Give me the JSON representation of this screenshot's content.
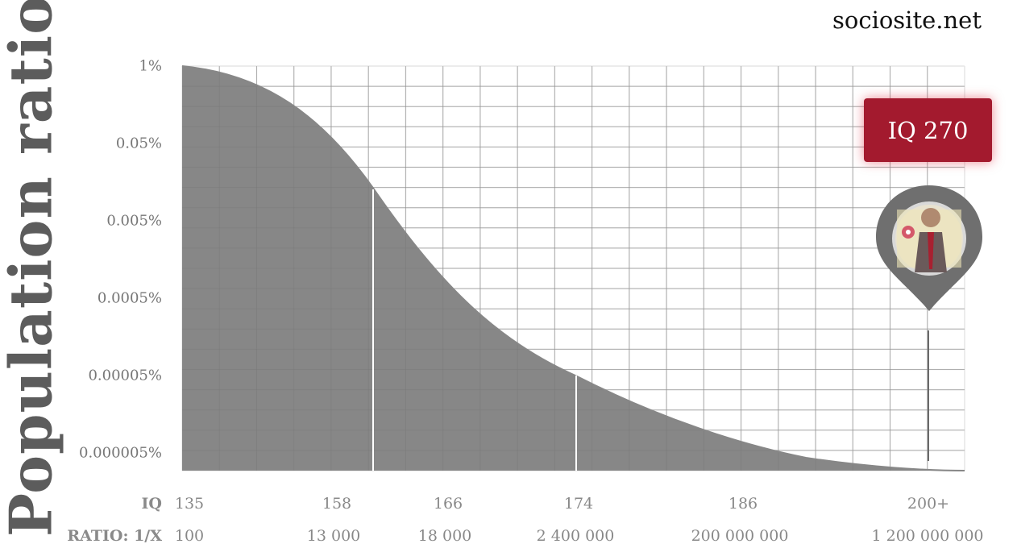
{
  "site": "sociosite.net",
  "ylabel": "Population ratio",
  "badge": "IQ 270",
  "row_labels": {
    "iq": "IQ",
    "ratio": "RATIO: 1/X"
  },
  "colors": {
    "fill": "#878787",
    "grid": "#e6e6e6",
    "badge": "#a31a2e"
  },
  "icon": "portrait-map-pin-icon",
  "chart_data": {
    "type": "area",
    "y_scale": "log",
    "y_ticks": [
      "1%",
      "0.05%",
      "0.005%",
      "0.0005%",
      "0.00005%",
      "0.000005%"
    ],
    "x_ticks": [
      {
        "iq": "135",
        "ratio": "100"
      },
      {
        "iq": "158",
        "ratio": "13 000"
      },
      {
        "iq": "166",
        "ratio": "18 000"
      },
      {
        "iq": "174",
        "ratio": "2 400 000"
      },
      {
        "iq": "186",
        "ratio": "200 000 000"
      },
      {
        "iq": "200+",
        "ratio": "1 200 000 000"
      }
    ],
    "grid": true
  }
}
